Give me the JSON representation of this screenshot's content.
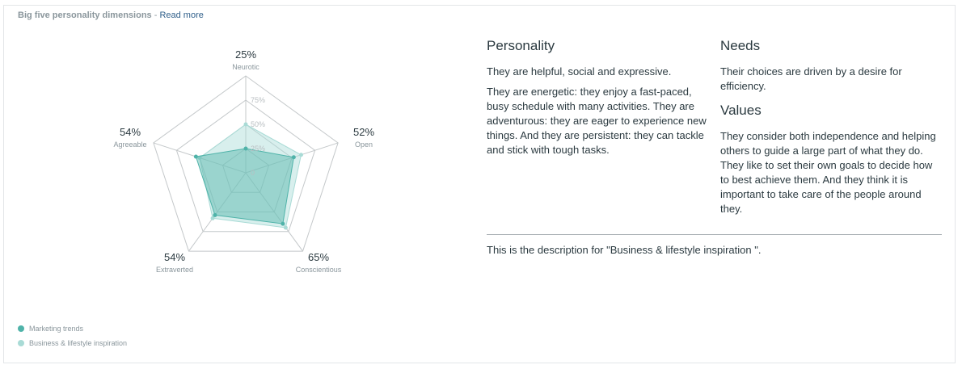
{
  "header": {
    "title": "Big five personality dimensions",
    "separator": "-",
    "link": "Read more"
  },
  "chart_data": {
    "type": "radar",
    "axes": [
      "Neurotic",
      "Open",
      "Conscientious",
      "Extraverted",
      "Agreeable"
    ],
    "axis_values_labels": [
      "25%",
      "52%",
      "65%",
      "54%",
      "54%"
    ],
    "scale_ticks": [
      "0",
      "25%",
      "50%",
      "75%"
    ],
    "range": [
      0,
      100
    ],
    "series": [
      {
        "name": "Marketing trends",
        "values": [
          25,
          52,
          65,
          54,
          54
        ],
        "color": "#4fb3a9"
      },
      {
        "name": "Business & lifestyle inspiration",
        "values": [
          50,
          60,
          70,
          58,
          50
        ],
        "color": "#a9dbd6"
      }
    ]
  },
  "legend": [
    {
      "label": "Marketing trends",
      "color": "#4fb3a9"
    },
    {
      "label": "Business & lifestyle inspiration",
      "color": "#a9dbd6"
    }
  ],
  "personality": {
    "heading": "Personality",
    "paragraphs": [
      "They are helpful, social and expressive.",
      "They are energetic: they enjoy a fast-paced, busy schedule with many activities. They are adventurous: they are eager to experience new things. And they are persistent: they can tackle and stick with tough tasks."
    ]
  },
  "needs": {
    "heading": "Needs",
    "text": "Their choices are driven by a desire for efficiency."
  },
  "values": {
    "heading": "Values",
    "text": "They consider both independence and helping others to guide a large part of what they do. They like to set their own goals to decide how to best achieve them. And they think it is important to take care of the people around they."
  },
  "description": "This is the description for \"Business & lifestyle inspiration \"."
}
